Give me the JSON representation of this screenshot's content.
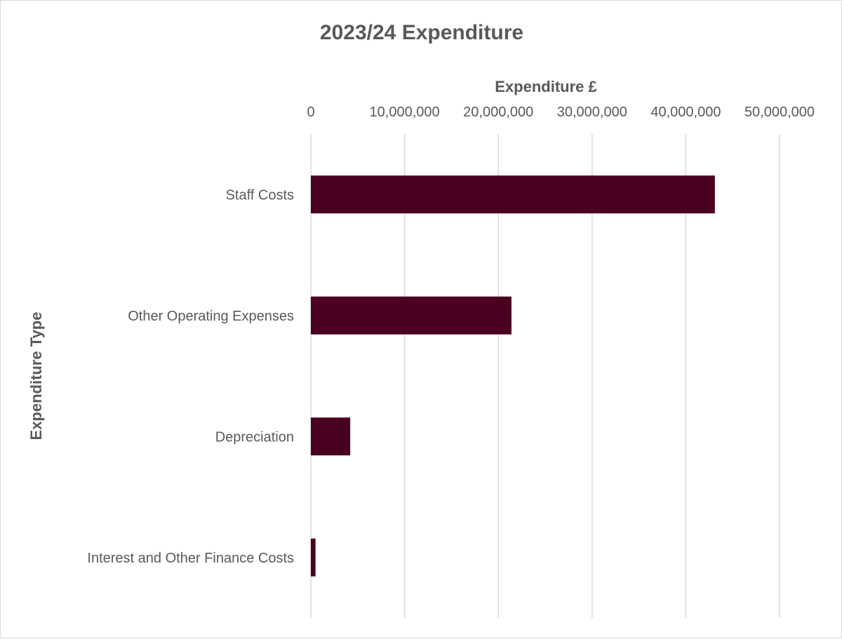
{
  "chart_data": {
    "type": "bar",
    "orientation": "horizontal",
    "title": "2023/24 Expenditure",
    "xlabel": "Expenditure £",
    "ylabel": "Expenditure Type",
    "categories": [
      "Staff Costs",
      "Other Operating Expenses",
      "Depreciation",
      "Interest and Other Finance Costs"
    ],
    "values": [
      43100000,
      21400000,
      4200000,
      500000
    ],
    "xlim": [
      0,
      50000000
    ],
    "xticks": [
      0,
      10000000,
      20000000,
      30000000,
      40000000,
      50000000
    ],
    "xtick_labels": [
      "0",
      "10,000,000",
      "20,000,000",
      "30,000,000",
      "40,000,000",
      "50,000,000"
    ],
    "x_axis_position": "top",
    "grid": true,
    "legend": "none",
    "bar_color": "#4a0020",
    "grid_color": "#d9d9d9",
    "text_color": "#595959"
  }
}
